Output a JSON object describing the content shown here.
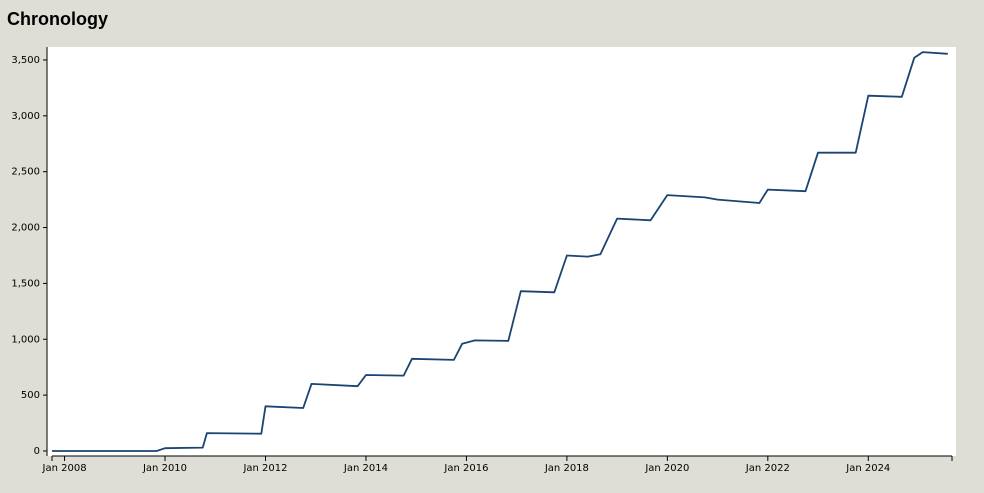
{
  "chart_data": {
    "type": "line",
    "title": "Chronology",
    "x": [
      "2007-10",
      "2009-11",
      "2010-01",
      "2010-10",
      "2010-11",
      "2011-12",
      "2012-01",
      "2012-10",
      "2012-12",
      "2013-11",
      "2014-01",
      "2014-10",
      "2014-12",
      "2015-10",
      "2015-12",
      "2016-03",
      "2016-11",
      "2017-02",
      "2017-10",
      "2018-01",
      "2018-06",
      "2018-09",
      "2019-01",
      "2019-09",
      "2020-01",
      "2020-10",
      "2021-01",
      "2021-11",
      "2022-01",
      "2022-10",
      "2023-01",
      "2023-10",
      "2024-01",
      "2024-09",
      "2024-12",
      "2025-02",
      "2025-08"
    ],
    "series": [
      {
        "color": "#1a4472",
        "values": [
          0,
          0,
          25,
          30,
          160,
          155,
          400,
          385,
          600,
          580,
          680,
          675,
          825,
          815,
          960,
          990,
          985,
          1430,
          1420,
          1750,
          1740,
          1760,
          2080,
          2065,
          2290,
          2270,
          2250,
          2220,
          2340,
          2325,
          2670,
          2670,
          3180,
          3170,
          3520,
          3570,
          3555
        ]
      }
    ],
    "xlim": [
      "2007-10",
      "2025-09"
    ],
    "xticks": [
      {
        "value": "2008-01",
        "label": "Jan 2008"
      },
      {
        "value": "2010-01",
        "label": "Jan 2010"
      },
      {
        "value": "2012-01",
        "label": "Jan 2012"
      },
      {
        "value": "2014-01",
        "label": "Jan 2014"
      },
      {
        "value": "2016-01",
        "label": "Jan 2016"
      },
      {
        "value": "2018-01",
        "label": "Jan 2018"
      },
      {
        "value": "2020-01",
        "label": "Jan 2020"
      },
      {
        "value": "2022-01",
        "label": "Jan 2022"
      },
      {
        "value": "2024-01",
        "label": "Jan 2024"
      }
    ],
    "ylim": [
      -45,
      3616
    ],
    "yticks": [
      0,
      500,
      {
        "value": 1000,
        "label": "1,000"
      },
      {
        "value": 1500,
        "label": "1,500"
      },
      {
        "value": 2000,
        "label": "2,000"
      },
      {
        "value": 2500,
        "label": "2,500"
      },
      {
        "value": 3000,
        "label": "3,000"
      },
      {
        "value": 3500,
        "label": "3,500"
      }
    ]
  }
}
